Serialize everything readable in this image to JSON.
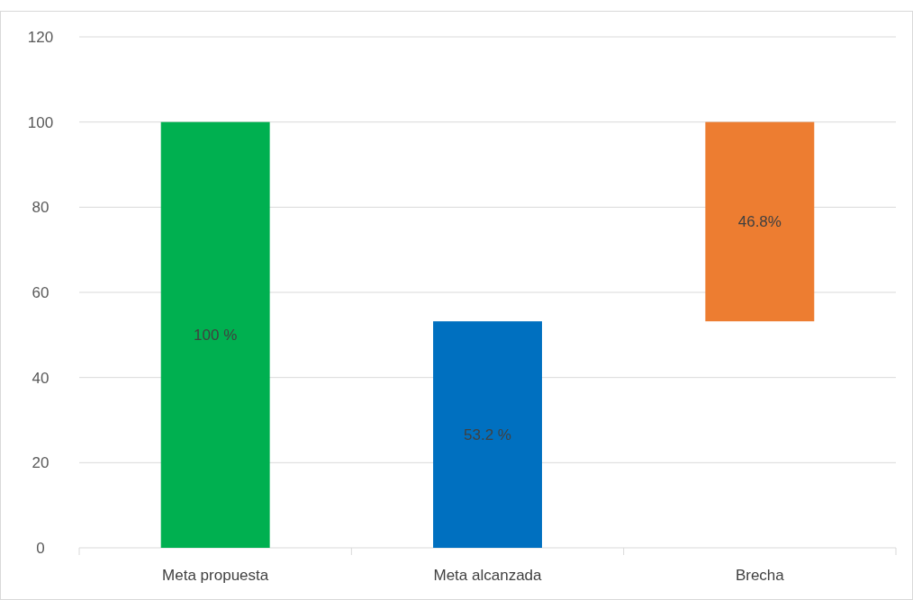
{
  "chart_data": {
    "type": "bar",
    "categories": [
      "Meta propuesta",
      "Meta alcanzada",
      "Brecha"
    ],
    "values": [
      100,
      53.2,
      46.8
    ],
    "base": [
      0,
      0,
      53.2
    ],
    "colors": [
      "#00b050",
      "#0070c0",
      "#ed7d31"
    ],
    "value_labels": [
      "100 %",
      "53.2 %",
      "46.8%"
    ],
    "ylim": [
      0,
      120
    ],
    "yticks": [
      0,
      20,
      40,
      60,
      80,
      100,
      120
    ],
    "grid": "y"
  }
}
